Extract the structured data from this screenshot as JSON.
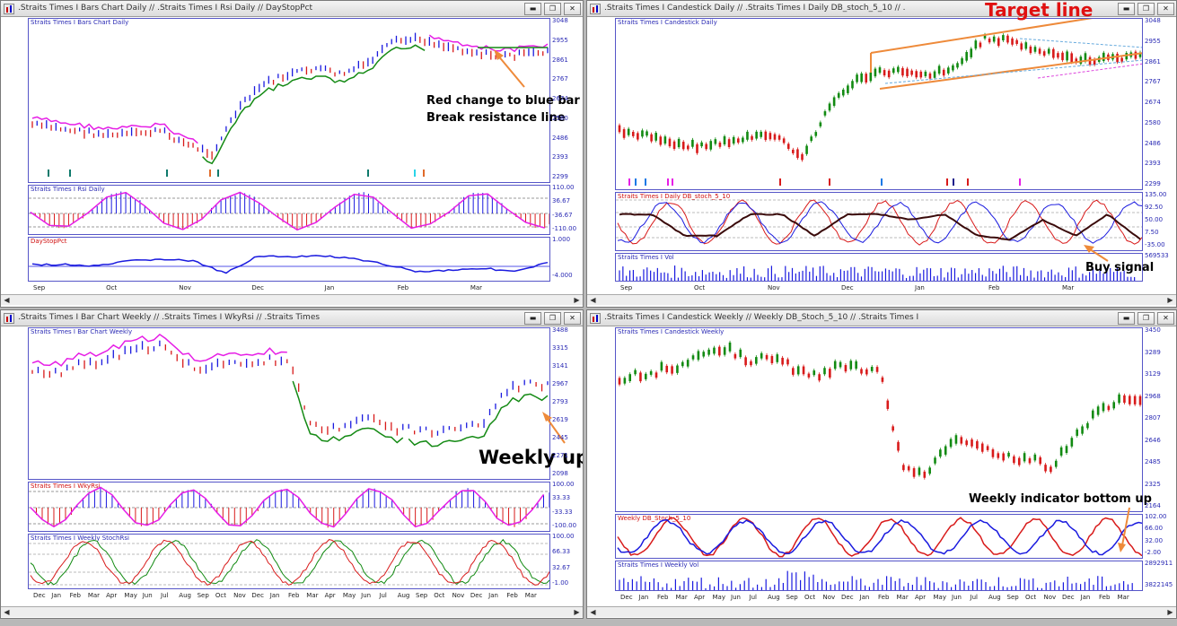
{
  "windows": [
    {
      "title": ".Straits Times I Bars Chart Daily // .Straits Times I Rsi Daily // DayStopPct",
      "panels": [
        {
          "title": "Straits Times I Bars Chart Daily",
          "ticks": [
            "3048",
            "2955",
            "2861",
            "2767",
            "2674",
            "2580",
            "2486",
            "2393",
            "2299"
          ]
        },
        {
          "title": "Straits Times I Rsi Daily",
          "ticks": [
            "110.00",
            "36.67",
            "-36.67",
            "-110.00"
          ]
        },
        {
          "title": "DayStopPct",
          "ticks": [
            "1.000",
            "-4.000"
          ]
        }
      ],
      "months": [
        "Sep",
        "Oct",
        "Nov",
        "Dec",
        "Jan",
        "Feb",
        "Mar"
      ]
    },
    {
      "title": ".Straits Times I Candestick Daily // .Straits Times I Daily DB_stoch_5_10 // .",
      "panels": [
        {
          "title": "Straits Times I Candestick Daily",
          "ticks": [
            "3048",
            "2955",
            "2861",
            "2767",
            "2674",
            "2580",
            "2486",
            "2393",
            "2299"
          ]
        },
        {
          "title": "Straits Times I Daily DB_stoch_5_10",
          "ticks": [
            "135.00",
            "92.50",
            "50.00",
            "7.50",
            "-35.00"
          ]
        },
        {
          "title": "Straits Times I Vol",
          "ticks": [
            "569533"
          ]
        }
      ],
      "months": [
        "Sep",
        "Oct",
        "Nov",
        "Dec",
        "Jan",
        "Feb",
        "Mar"
      ]
    },
    {
      "title": ".Straits Times I Bar Chart Weekly // .Straits Times I WkyRsi // .Straits Times",
      "panels": [
        {
          "title": "Straits Times I Bar Chart Weekly",
          "ticks": [
            "3488",
            "3315",
            "3141",
            "2967",
            "2793",
            "2619",
            "2445",
            "2271",
            "2098"
          ]
        },
        {
          "title": "Straits Times I WkyRsi",
          "ticks": [
            "100.00",
            "33.33",
            "-33.33",
            "-100.00"
          ]
        },
        {
          "title": "Straits Times I Weekly StochRsi",
          "ticks": [
            "100.00",
            "66.33",
            "32.67",
            "-1.00"
          ]
        }
      ],
      "months": [
        "Dec",
        "Jan",
        "Feb",
        "Mar",
        "Apr",
        "May",
        "Jun",
        "Jul",
        "Aug",
        "Sep",
        "Oct",
        "Nov",
        "Dec",
        "Jan",
        "Feb",
        "Mar",
        "Apr",
        "May",
        "Jun",
        "Jul",
        "Aug",
        "Sep",
        "Oct",
        "Nov",
        "Dec",
        "Jan",
        "Feb",
        "Mar"
      ]
    },
    {
      "title": ".Straits Times I Candestick Weekly // Weekly DB_Stoch_5_10 // .Straits Times I",
      "panels": [
        {
          "title": "Straits Times I Candestick Weekly",
          "ticks": [
            "3450",
            "3289",
            "3129",
            "2968",
            "2807",
            "2646",
            "2485",
            "2325",
            "2164"
          ]
        },
        {
          "title": "Weekly DB_Stoch_5_10",
          "ticks": [
            "102.00",
            "66.00",
            "32.00",
            "-2.00"
          ]
        },
        {
          "title": "Straits Times I Weekly Vol",
          "ticks": [
            "2892911",
            "3822145"
          ]
        }
      ],
      "months": [
        "Dec",
        "Jan",
        "Feb",
        "Mar",
        "Apr",
        "May",
        "Jun",
        "Jul",
        "Aug",
        "Sep",
        "Oct",
        "Nov",
        "Dec",
        "Jan",
        "Feb",
        "Mar",
        "Apr",
        "May",
        "Jun",
        "Jul",
        "Aug",
        "Sep",
        "Oct",
        "Nov",
        "Dec",
        "Jan",
        "Feb",
        "Mar"
      ]
    }
  ],
  "annotations": {
    "red_change": "Red change to blue bar",
    "break_resistance": "Break resistance line",
    "target_line": "Target line",
    "buy_signal": "Buy signal",
    "weekly_uptrend": "Weekly uptrend",
    "weekly_indicator": "Weekly indicator bottom up"
  },
  "window_buttons": {
    "minimize": "▬",
    "restore": "❐",
    "close": "✕"
  },
  "colors": {
    "bull": "#1a1adf",
    "bear": "#d81a1a",
    "green_candle": "#118a11",
    "stop_magenta": "#e61ee6",
    "stop_green": "#148a14",
    "annotation_arrow": "#ee8a3a",
    "target_title": "#e01010"
  }
}
